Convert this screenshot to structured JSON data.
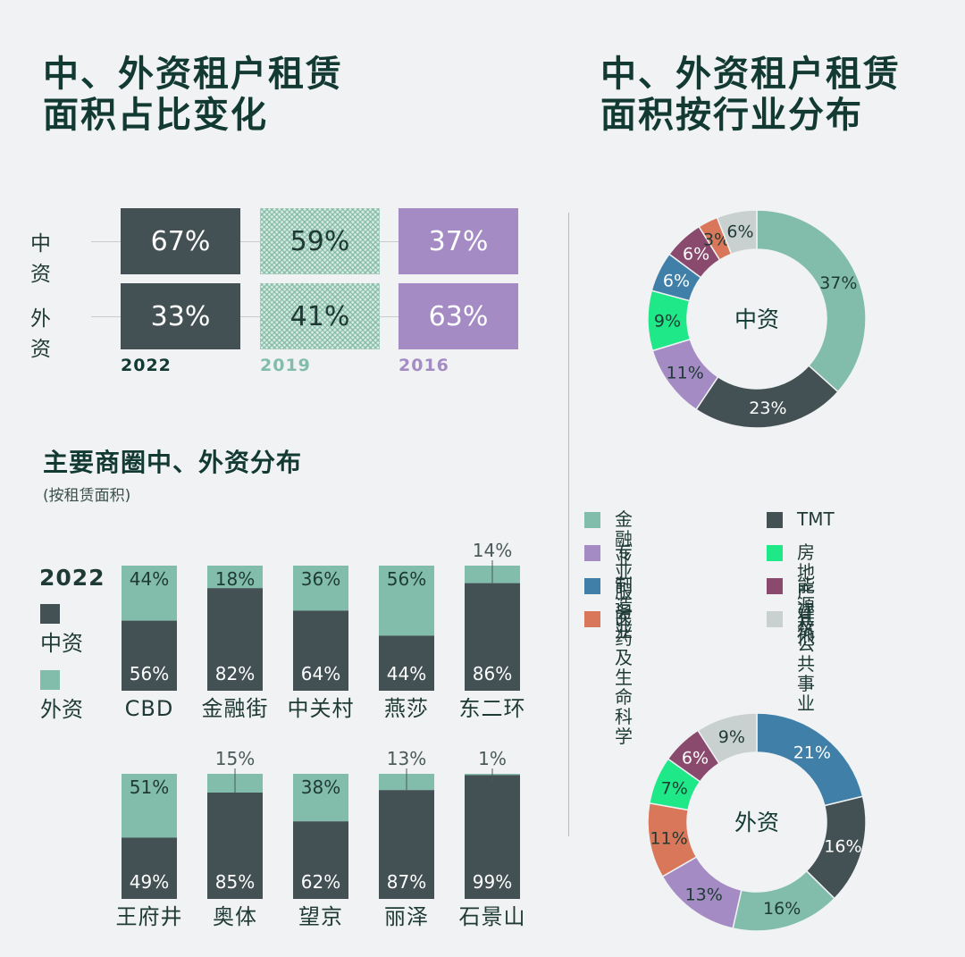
{
  "titles": {
    "left_main": [
      "中、外资租户租赁",
      "面积占比变化"
    ],
    "right_main": [
      "中、外资租户租赁",
      "面积按行业分布"
    ],
    "district_title": "主要商圈中、外资分布",
    "district_subtitle": "(按租赁面积)"
  },
  "colors": {
    "chinese": "#435155",
    "foreign": "#82bcab",
    "y2019": "#82bcab",
    "y2016": "#a48bc4",
    "title": "#123a33"
  },
  "chart_data": [
    {
      "type": "table",
      "name": "share-change",
      "rows": [
        "中资",
        "外资"
      ],
      "years": [
        "2022",
        "2019",
        "2016"
      ],
      "values": {
        "中资": [
          "67%",
          "59%",
          "37%"
        ],
        "外资": [
          "33%",
          "41%",
          "63%"
        ]
      }
    },
    {
      "type": "bar",
      "name": "district-distribution",
      "legend_year": "2022",
      "legend": [
        {
          "key": "chinese",
          "label": "中资"
        },
        {
          "key": "foreign",
          "label": "外资"
        }
      ],
      "categories": [
        "CBD",
        "金融街",
        "中关村",
        "燕莎",
        "东二环",
        "王府井",
        "奥体",
        "望京",
        "丽泽",
        "石景山"
      ],
      "series": [
        {
          "name": "中资",
          "key": "chinese",
          "values": [
            56,
            82,
            64,
            44,
            86,
            49,
            85,
            62,
            87,
            99
          ]
        },
        {
          "name": "外资",
          "key": "foreign",
          "values": [
            44,
            18,
            36,
            56,
            14,
            51,
            15,
            38,
            13,
            1
          ]
        }
      ],
      "ylim": [
        0,
        100
      ]
    },
    {
      "type": "pie",
      "name": "industry-chinese",
      "center_label": "中资",
      "slices": [
        {
          "label": "金融业",
          "value": 37
        },
        {
          "label": "TMT",
          "value": 23
        },
        {
          "label": "专业服务业",
          "value": 11
        },
        {
          "label": "房地产建筑",
          "value": 9
        },
        {
          "label": "制造业",
          "value": 6
        },
        {
          "label": "能源及公共事业",
          "value": 6
        },
        {
          "label": "医药及生命科学",
          "value": 3
        },
        {
          "label": "其他",
          "value": 6
        }
      ]
    },
    {
      "type": "pie",
      "name": "industry-foreign",
      "center_label": "外资",
      "slices": [
        {
          "label": "制造业",
          "value": 21
        },
        {
          "label": "TMT",
          "value": 16
        },
        {
          "label": "金融业",
          "value": 16
        },
        {
          "label": "专业服务业",
          "value": 13
        },
        {
          "label": "医药及生命科学",
          "value": 11
        },
        {
          "label": "房地产建筑",
          "value": 7
        },
        {
          "label": "能源及公共事业",
          "value": 6
        },
        {
          "label": "其他",
          "value": 9
        }
      ]
    }
  ],
  "industry_legend": [
    {
      "label": "金融业",
      "color": "#82bcab"
    },
    {
      "label": "TMT",
      "color": "#435155"
    },
    {
      "label": "专业服务业",
      "color": "#a48bc4"
    },
    {
      "label": "房地产建筑",
      "color": "#1ee888"
    },
    {
      "label": "制造业",
      "color": "#3f7fa8"
    },
    {
      "label": "能源及公共事业",
      "color": "#8a4a6e"
    },
    {
      "label": "医药及生命科学",
      "color": "#d8775a"
    },
    {
      "label": "其他",
      "color": "#c9d0d0"
    }
  ]
}
